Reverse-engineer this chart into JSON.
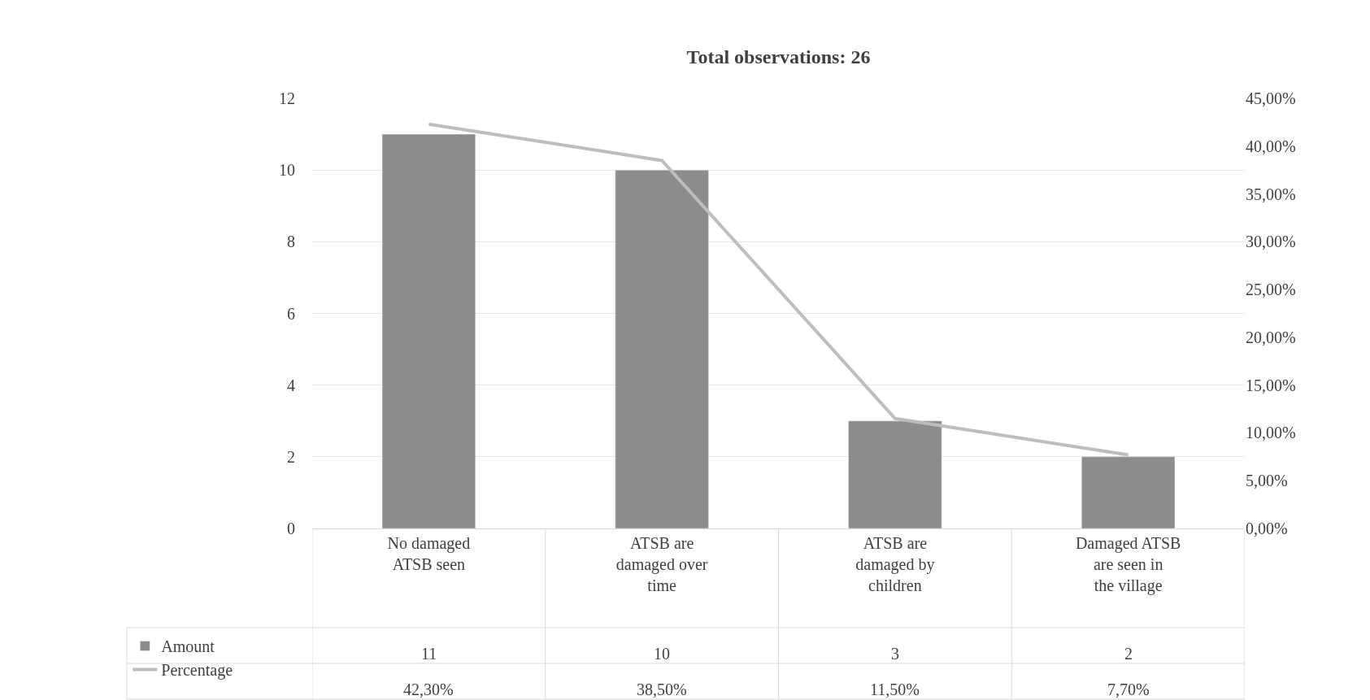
{
  "chart_data": {
    "type": "bar",
    "title": "Total observations: 26",
    "categories": [
      "No damaged ATSB seen",
      "ATSB are damaged over time",
      "ATSB are damaged by children",
      "Damaged ATSB are seen in the village"
    ],
    "series": [
      {
        "name": "Amount",
        "color": "#8c8c8c",
        "values": [
          11,
          10,
          3,
          2
        ],
        "value_labels": [
          "11",
          "10",
          "3",
          "2"
        ]
      },
      {
        "name": "Percentage",
        "type": "line",
        "axis": "y2",
        "color": "#bdbdbd",
        "values": [
          42.3,
          38.5,
          11.5,
          7.7
        ],
        "value_labels": [
          "42,30%",
          "38,50%",
          "11,50%",
          "7,70%"
        ]
      }
    ],
    "ylim": [
      0,
      12
    ],
    "yticks": [
      0,
      2,
      4,
      6,
      8,
      10,
      12
    ],
    "y2lim": [
      0,
      45
    ],
    "y2ticks": [
      {
        "value": 0,
        "label": "0,00%"
      },
      {
        "value": 5,
        "label": "5,00%"
      },
      {
        "value": 10,
        "label": "10,00%"
      },
      {
        "value": 15,
        "label": "15,00%"
      },
      {
        "value": 20,
        "label": "20,00%"
      },
      {
        "value": 25,
        "label": "25,00%"
      },
      {
        "value": 30,
        "label": "30,00%"
      },
      {
        "value": 35,
        "label": "35,00%"
      },
      {
        "value": 40,
        "label": "40,00%"
      },
      {
        "value": 45,
        "label": "45,00%"
      }
    ],
    "grid": "y",
    "legend": "bottom left",
    "marker": "none",
    "line_style": "solid"
  }
}
